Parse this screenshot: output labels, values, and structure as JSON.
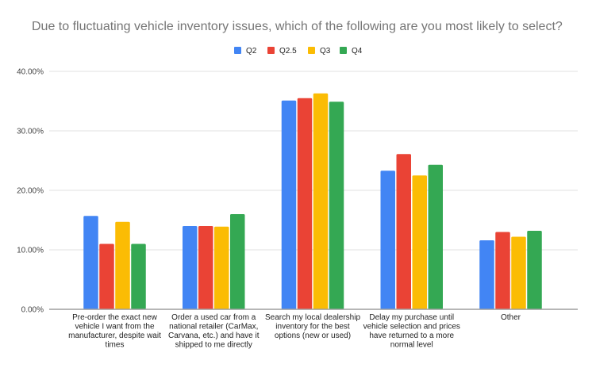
{
  "chart_data": {
    "type": "bar",
    "title": "Due to fluctuating vehicle inventory issues, which of the following are you most likely to select?",
    "xlabel": "",
    "ylabel": "",
    "ylim": [
      0,
      40
    ],
    "y_ticks": [
      0,
      10,
      20,
      30,
      40
    ],
    "y_tick_labels": [
      "0.00%",
      "10.00%",
      "20.00%",
      "30.00%",
      "40.00%"
    ],
    "grid": true,
    "legend_position": "top-center",
    "categories": [
      [
        "Pre-order the exact new",
        "vehicle I want from the",
        "manufacturer, despite wait",
        "times"
      ],
      [
        "Order a used car from a",
        "national retailer (CarMax,",
        "Carvana, etc.) and have it",
        "shipped to me directly"
      ],
      [
        "Search my local dealership",
        "inventory for the best",
        "options (new or used)"
      ],
      [
        "Delay my purchase until",
        "vehicle selection and prices",
        "have returned to a more",
        "normal level"
      ],
      [
        "Other"
      ]
    ],
    "series": [
      {
        "name": "Q2",
        "color": "#4285f4",
        "values": [
          15.7,
          14.0,
          35.1,
          23.3,
          11.6
        ]
      },
      {
        "name": "Q2.5",
        "color": "#ea4335",
        "values": [
          11.0,
          14.0,
          35.5,
          26.1,
          13.0
        ]
      },
      {
        "name": "Q3",
        "color": "#fbbc04",
        "values": [
          14.7,
          13.9,
          36.3,
          22.5,
          12.2
        ]
      },
      {
        "name": "Q4",
        "color": "#34a853",
        "values": [
          11.0,
          16.0,
          34.9,
          24.3,
          13.2
        ]
      }
    ]
  }
}
